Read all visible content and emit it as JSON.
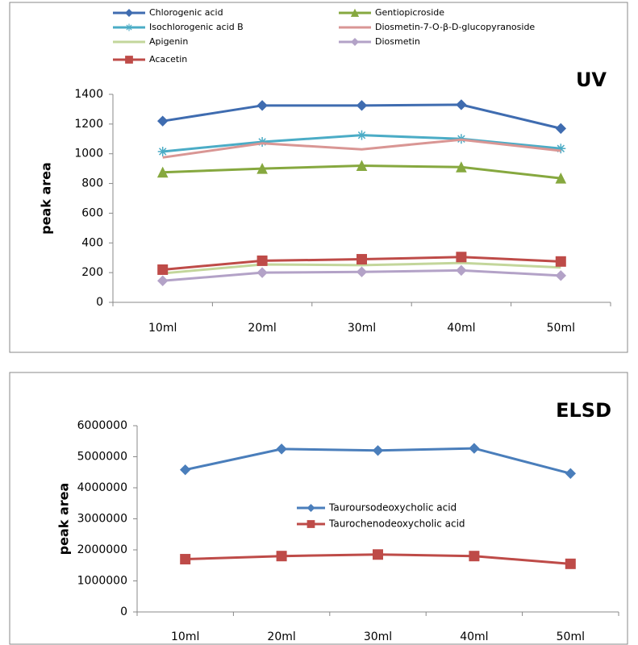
{
  "chart_data": [
    {
      "type": "line",
      "title": "UV",
      "y_label": "peak area",
      "legend": "top",
      "categories": [
        "10ml",
        "20ml",
        "30ml",
        "40ml",
        "50ml"
      ],
      "ylim": [
        0,
        1400
      ],
      "yticks": [
        0,
        200,
        400,
        600,
        800,
        1000,
        1200,
        1400
      ],
      "series": [
        {
          "name": "Chlorogenic acid",
          "color": "#3f6cb0",
          "marker": "diamond",
          "values": [
            1220,
            1325,
            1325,
            1330,
            1170
          ]
        },
        {
          "name": "Gentiopicroside",
          "color": "#86a83f",
          "marker": "triangle",
          "values": [
            875,
            900,
            920,
            910,
            835
          ]
        },
        {
          "name": "Isochlorogenic acid B",
          "color": "#4bacc6",
          "marker": "star",
          "values": [
            1015,
            1080,
            1125,
            1100,
            1035
          ]
        },
        {
          "name": "Diosmetin-7-O-β-D-glucopyranoside",
          "color": "#d99694",
          "marker": "none",
          "values": [
            975,
            1070,
            1030,
            1095,
            1020
          ]
        },
        {
          "name": "Apigenin",
          "color": "#c3d69b",
          "marker": "none",
          "values": [
            195,
            255,
            250,
            265,
            235
          ]
        },
        {
          "name": "Diosmetin",
          "color": "#b3a2c7",
          "marker": "diamond",
          "values": [
            145,
            200,
            205,
            215,
            180
          ]
        },
        {
          "name": "Acacetin",
          "color": "#be4b48",
          "marker": "square",
          "values": [
            220,
            280,
            290,
            305,
            275
          ]
        }
      ]
    },
    {
      "type": "line",
      "title": "ELSD",
      "y_label": "peak area",
      "legend": "center",
      "categories": [
        "10ml",
        "20ml",
        "30ml",
        "40ml",
        "50ml"
      ],
      "ylim": [
        0,
        6000000
      ],
      "yticks": [
        0,
        1000000,
        2000000,
        3000000,
        4000000,
        5000000,
        6000000
      ],
      "series": [
        {
          "name": "Tauroursodeoxycholic acid",
          "color": "#4a7ebb",
          "marker": "diamond",
          "values": [
            4580000,
            5250000,
            5200000,
            5270000,
            4460000
          ]
        },
        {
          "name": "Taurochenodeoxycholic acid",
          "color": "#be4b48",
          "marker": "square",
          "values": [
            1700000,
            1800000,
            1850000,
            1800000,
            1550000
          ]
        }
      ]
    }
  ]
}
